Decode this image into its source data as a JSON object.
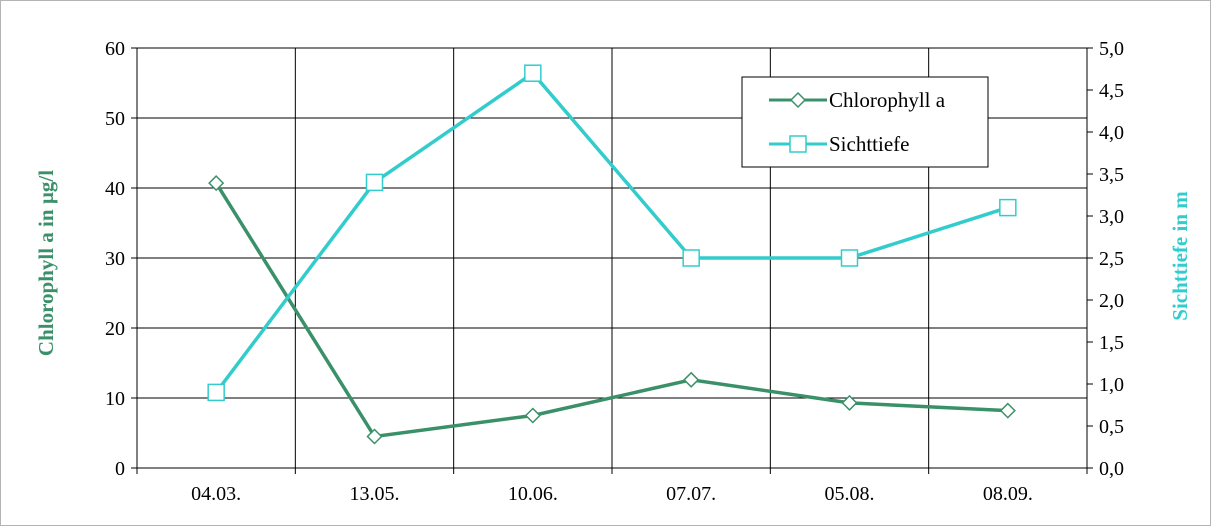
{
  "colors": {
    "chlorophyll": "#3a9068",
    "sichttiefe": "#33cccc",
    "grid": "#000000",
    "frame": "#b4b4b4"
  },
  "chart_data": {
    "type": "line",
    "categories": [
      "04.03.",
      "13.05.",
      "10.06.",
      "07.07.",
      "05.08.",
      "08.09."
    ],
    "series": [
      {
        "name": "Chlorophyll a",
        "axis": "left",
        "marker": "diamond",
        "values": [
          40.7,
          4.5,
          7.5,
          12.6,
          9.3,
          8.2
        ]
      },
      {
        "name": "Sichttiefe",
        "axis": "right",
        "marker": "square",
        "values": [
          0.9,
          3.4,
          4.7,
          2.5,
          2.5,
          3.1
        ]
      }
    ],
    "ylabel": "Chlorophyll a in µg/l",
    "y2label": "Sichttiefe in m",
    "ylim": [
      0,
      60
    ],
    "y2lim": [
      0,
      5
    ],
    "yticks": [
      "0",
      "10",
      "20",
      "30",
      "40",
      "50",
      "60"
    ],
    "y2ticks": [
      "0,0",
      "0,5",
      "1,0",
      "1,5",
      "2,0",
      "2,5",
      "3,0",
      "3,5",
      "4,0",
      "4,5",
      "5,0"
    ],
    "grid": true,
    "legend": "top-right"
  }
}
